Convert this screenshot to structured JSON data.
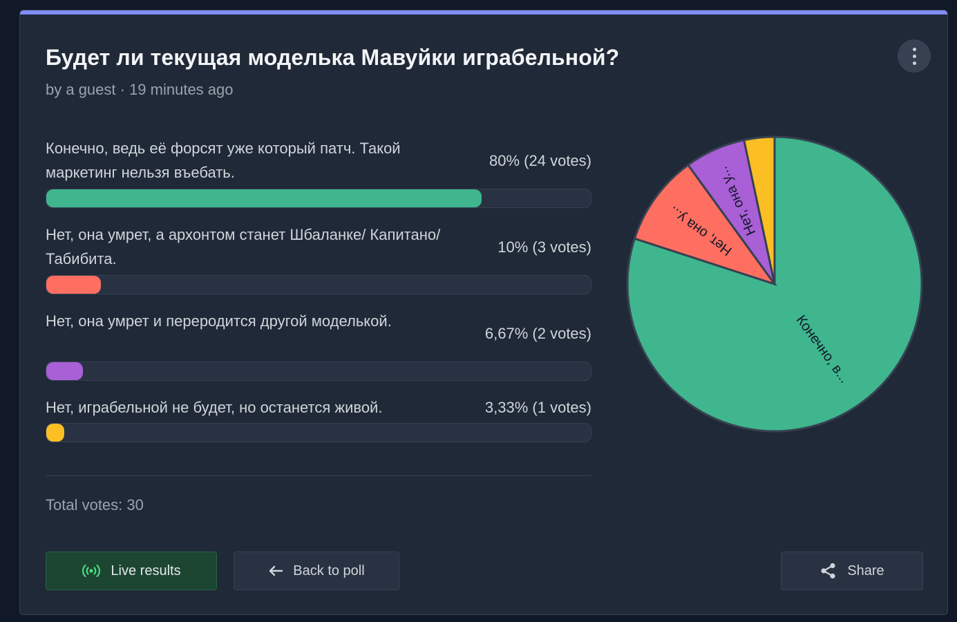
{
  "poll": {
    "title": "Будет ли текущая моделька Мавуйки играбельной?",
    "byline": "by a guest · 19 minutes ago",
    "total_votes_label": "Total votes: 30"
  },
  "options": [
    {
      "label": "Конечно, ведь её форсят уже который патч. Такой маркетинг нельзя въебать.",
      "pct_label": "80% (24 votes)",
      "votes": 24,
      "percent": 80,
      "color": "#3fb68e"
    },
    {
      "label": "Нет, она умрет, а архонтом станет Шбаланке/ Капитано/Табибита.",
      "pct_label": "10% (3 votes)",
      "votes": 3,
      "percent": 10,
      "color": "#ff6f61"
    },
    {
      "label": "Нет, она умрет и переродится другой моделькой.",
      "pct_label": "6,67% (2 votes)",
      "votes": 2,
      "percent": 6.67,
      "color": "#a95fd6"
    },
    {
      "label": "Нет, играбельной не будет, но останется живой.",
      "pct_label": "3,33% (1 votes)",
      "votes": 1,
      "percent": 3.33,
      "color": "#fbbf24"
    }
  ],
  "buttons": {
    "live": "Live results",
    "back": "Back to poll",
    "share": "Share"
  },
  "icons": {
    "menu": "vertical-dots-icon",
    "live": "broadcast-icon",
    "back": "arrow-left-icon",
    "share": "share-icon"
  },
  "chart_data": {
    "type": "pie",
    "categories": [
      "Конечно, в...",
      "Нет, она у...",
      "Нет, она у...",
      ""
    ],
    "values": [
      24,
      3,
      2,
      1
    ],
    "colors": [
      "#3fb68e",
      "#ff6f61",
      "#a95fd6",
      "#fbbf24"
    ]
  }
}
